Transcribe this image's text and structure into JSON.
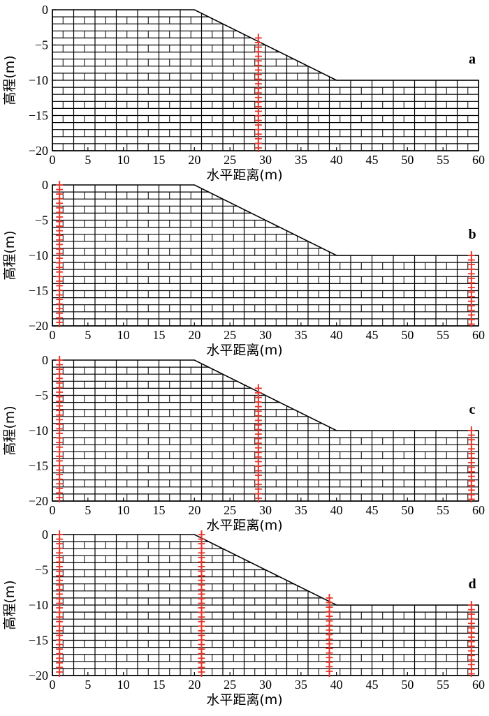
{
  "chart_data": [
    {
      "type": "mesh",
      "label": "a",
      "xlabel": "水平距离(m)",
      "ylabel": "高程(m)",
      "xlim": [
        0,
        60
      ],
      "ylim": [
        -20,
        0
      ],
      "xticks": [
        "0",
        "5",
        "10",
        "15",
        "20",
        "25",
        "30",
        "35",
        "40",
        "45",
        "50",
        "55",
        "60"
      ],
      "yticks": [
        "0",
        "−5",
        "−10",
        "−15",
        "−20"
      ],
      "slope_profile": [
        [
          0,
          0
        ],
        [
          20,
          0
        ],
        [
          40,
          -10
        ],
        [
          60,
          -10
        ]
      ],
      "monitoring_lines": [
        {
          "x": 29,
          "y_top": -4,
          "y_bottom": -20
        }
      ]
    },
    {
      "type": "mesh",
      "label": "b",
      "xlabel": "水平距离(m)",
      "ylabel": "高程(m)",
      "xlim": [
        0,
        60
      ],
      "ylim": [
        -20,
        0
      ],
      "xticks": [
        "0",
        "5",
        "10",
        "15",
        "20",
        "25",
        "30",
        "35",
        "40",
        "45",
        "50",
        "55",
        "60"
      ],
      "yticks": [
        "0",
        "−5",
        "−10",
        "−15",
        "−20"
      ],
      "slope_profile": [
        [
          0,
          0
        ],
        [
          20,
          0
        ],
        [
          40,
          -10
        ],
        [
          60,
          -10
        ]
      ],
      "monitoring_lines": [
        {
          "x": 1,
          "y_top": 0,
          "y_bottom": -20
        },
        {
          "x": 59,
          "y_top": -10,
          "y_bottom": -20
        }
      ]
    },
    {
      "type": "mesh",
      "label": "c",
      "xlabel": "水平距离(m)",
      "ylabel": "高程(m)",
      "xlim": [
        0,
        60
      ],
      "ylim": [
        -20,
        0
      ],
      "xticks": [
        "0",
        "5",
        "10",
        "15",
        "20",
        "25",
        "30",
        "35",
        "40",
        "45",
        "50",
        "55",
        "60"
      ],
      "yticks": [
        "0",
        "−5",
        "−10",
        "−15",
        "−20"
      ],
      "slope_profile": [
        [
          0,
          0
        ],
        [
          20,
          0
        ],
        [
          40,
          -10
        ],
        [
          60,
          -10
        ]
      ],
      "monitoring_lines": [
        {
          "x": 1,
          "y_top": 0,
          "y_bottom": -20
        },
        {
          "x": 29,
          "y_top": -4,
          "y_bottom": -20
        },
        {
          "x": 59,
          "y_top": -10,
          "y_bottom": -20
        }
      ]
    },
    {
      "type": "mesh",
      "label": "d",
      "xlabel": "水平距离(m)",
      "ylabel": "高程(m)",
      "xlim": [
        0,
        60
      ],
      "ylim": [
        -20,
        0
      ],
      "xticks": [
        "0",
        "5",
        "10",
        "15",
        "20",
        "25",
        "30",
        "35",
        "40",
        "45",
        "50",
        "55",
        "60"
      ],
      "yticks": [
        "0",
        "−5",
        "−10",
        "−15",
        "−20"
      ],
      "slope_profile": [
        [
          0,
          0
        ],
        [
          20,
          0
        ],
        [
          40,
          -10
        ],
        [
          60,
          -10
        ]
      ],
      "monitoring_lines": [
        {
          "x": 1,
          "y_top": 0,
          "y_bottom": -20
        },
        {
          "x": 21,
          "y_top": 0,
          "y_bottom": -20
        },
        {
          "x": 39,
          "y_top": -9,
          "y_bottom": -20
        },
        {
          "x": 59,
          "y_top": -10,
          "y_bottom": -20
        }
      ]
    }
  ],
  "colors": {
    "mesh": "#000000",
    "monitoring_line": "#e8352a"
  }
}
